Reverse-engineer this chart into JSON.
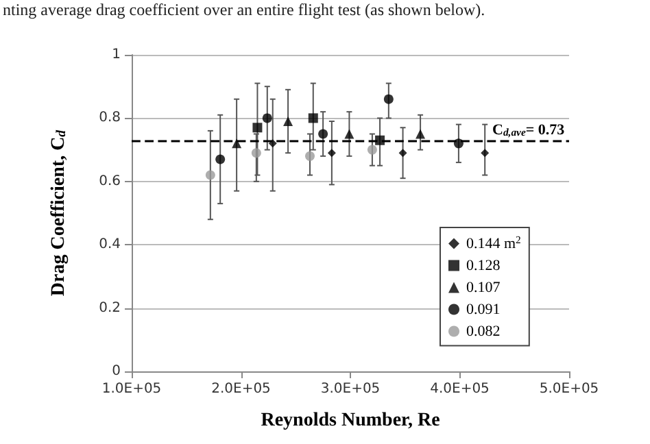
{
  "chart_data": {
    "type": "scatter",
    "annotations": [
      "nting average drag coefficient over an entire flight test (as shown below)."
    ],
    "xlabel": "Reynolds Number, Re",
    "ylabel": "Drag Coefficient, C$_{d}$",
    "xlim": [
      100000,
      500000
    ],
    "xticks": [
      {
        "value": 100000,
        "label": "1.0E+05"
      },
      {
        "value": 200000,
        "label": "2.0E+05"
      },
      {
        "value": 300000,
        "label": "3.0E+05"
      },
      {
        "value": 400000,
        "label": "4.0E+05"
      },
      {
        "value": 500000,
        "label": "5.0E+05"
      }
    ],
    "ylim": [
      0,
      1
    ],
    "yticks": [
      0,
      0.2,
      0.4,
      0.6,
      0.8,
      1
    ],
    "grid": "y",
    "legend": "bottom right",
    "series": [
      {
        "name": "0.144 m$^{2}$",
        "color": "#000000",
        "marker": "diamond",
        "x": [
          229000,
          283000,
          348000,
          423000
        ],
        "values": [
          0.72,
          0.69,
          0.69,
          0.69
        ],
        "errors": [
          [
            0.57,
            0.86
          ],
          [
            0.59,
            0.79
          ],
          [
            0.61,
            0.77
          ],
          [
            0.62,
            0.78
          ]
        ]
      },
      {
        "name": "0.128",
        "color": "#000000",
        "marker": "square",
        "x": [
          215000,
          266000,
          327000
        ],
        "values": [
          0.77,
          0.8,
          0.73
        ],
        "errors": [
          [
            0.62,
            0.91
          ],
          [
            0.7,
            0.91
          ],
          [
            0.65,
            0.8
          ]
        ]
      },
      {
        "name": "0.107",
        "color": "#000000",
        "marker": "triangle",
        "x": [
          196000,
          243000,
          299000,
          364000
        ],
        "values": [
          0.72,
          0.79,
          0.75,
          0.75
        ],
        "errors": [
          [
            0.57,
            0.86
          ],
          [
            0.69,
            0.89
          ],
          [
            0.68,
            0.82
          ],
          [
            0.7,
            0.81
          ]
        ]
      },
      {
        "name": "0.091",
        "color": "#000000",
        "marker": "circle",
        "x": [
          181000,
          224000,
          275000,
          335000,
          399000
        ],
        "values": [
          0.67,
          0.8,
          0.75,
          0.86,
          0.72
        ],
        "errors": [
          [
            0.53,
            0.81
          ],
          [
            0.7,
            0.9
          ],
          [
            0.68,
            0.82
          ],
          [
            0.8,
            0.91
          ],
          [
            0.66,
            0.78
          ]
        ]
      },
      {
        "name": "0.082",
        "color": "#9a9a9a",
        "marker": "circle",
        "x": [
          172000,
          214000,
          263000,
          320000
        ],
        "values": [
          0.62,
          0.69,
          0.68,
          0.7
        ],
        "errors": [
          [
            0.48,
            0.76
          ],
          [
            0.6,
            0.75
          ],
          [
            0.62,
            0.75
          ],
          [
            0.65,
            0.75
          ]
        ]
      }
    ],
    "ref_lines": [
      {
        "axis": "y",
        "value": 0.73,
        "label": "C$_{d,ave}$= 0.73",
        "color": "#000000",
        "line_style": "dashed"
      }
    ]
  }
}
